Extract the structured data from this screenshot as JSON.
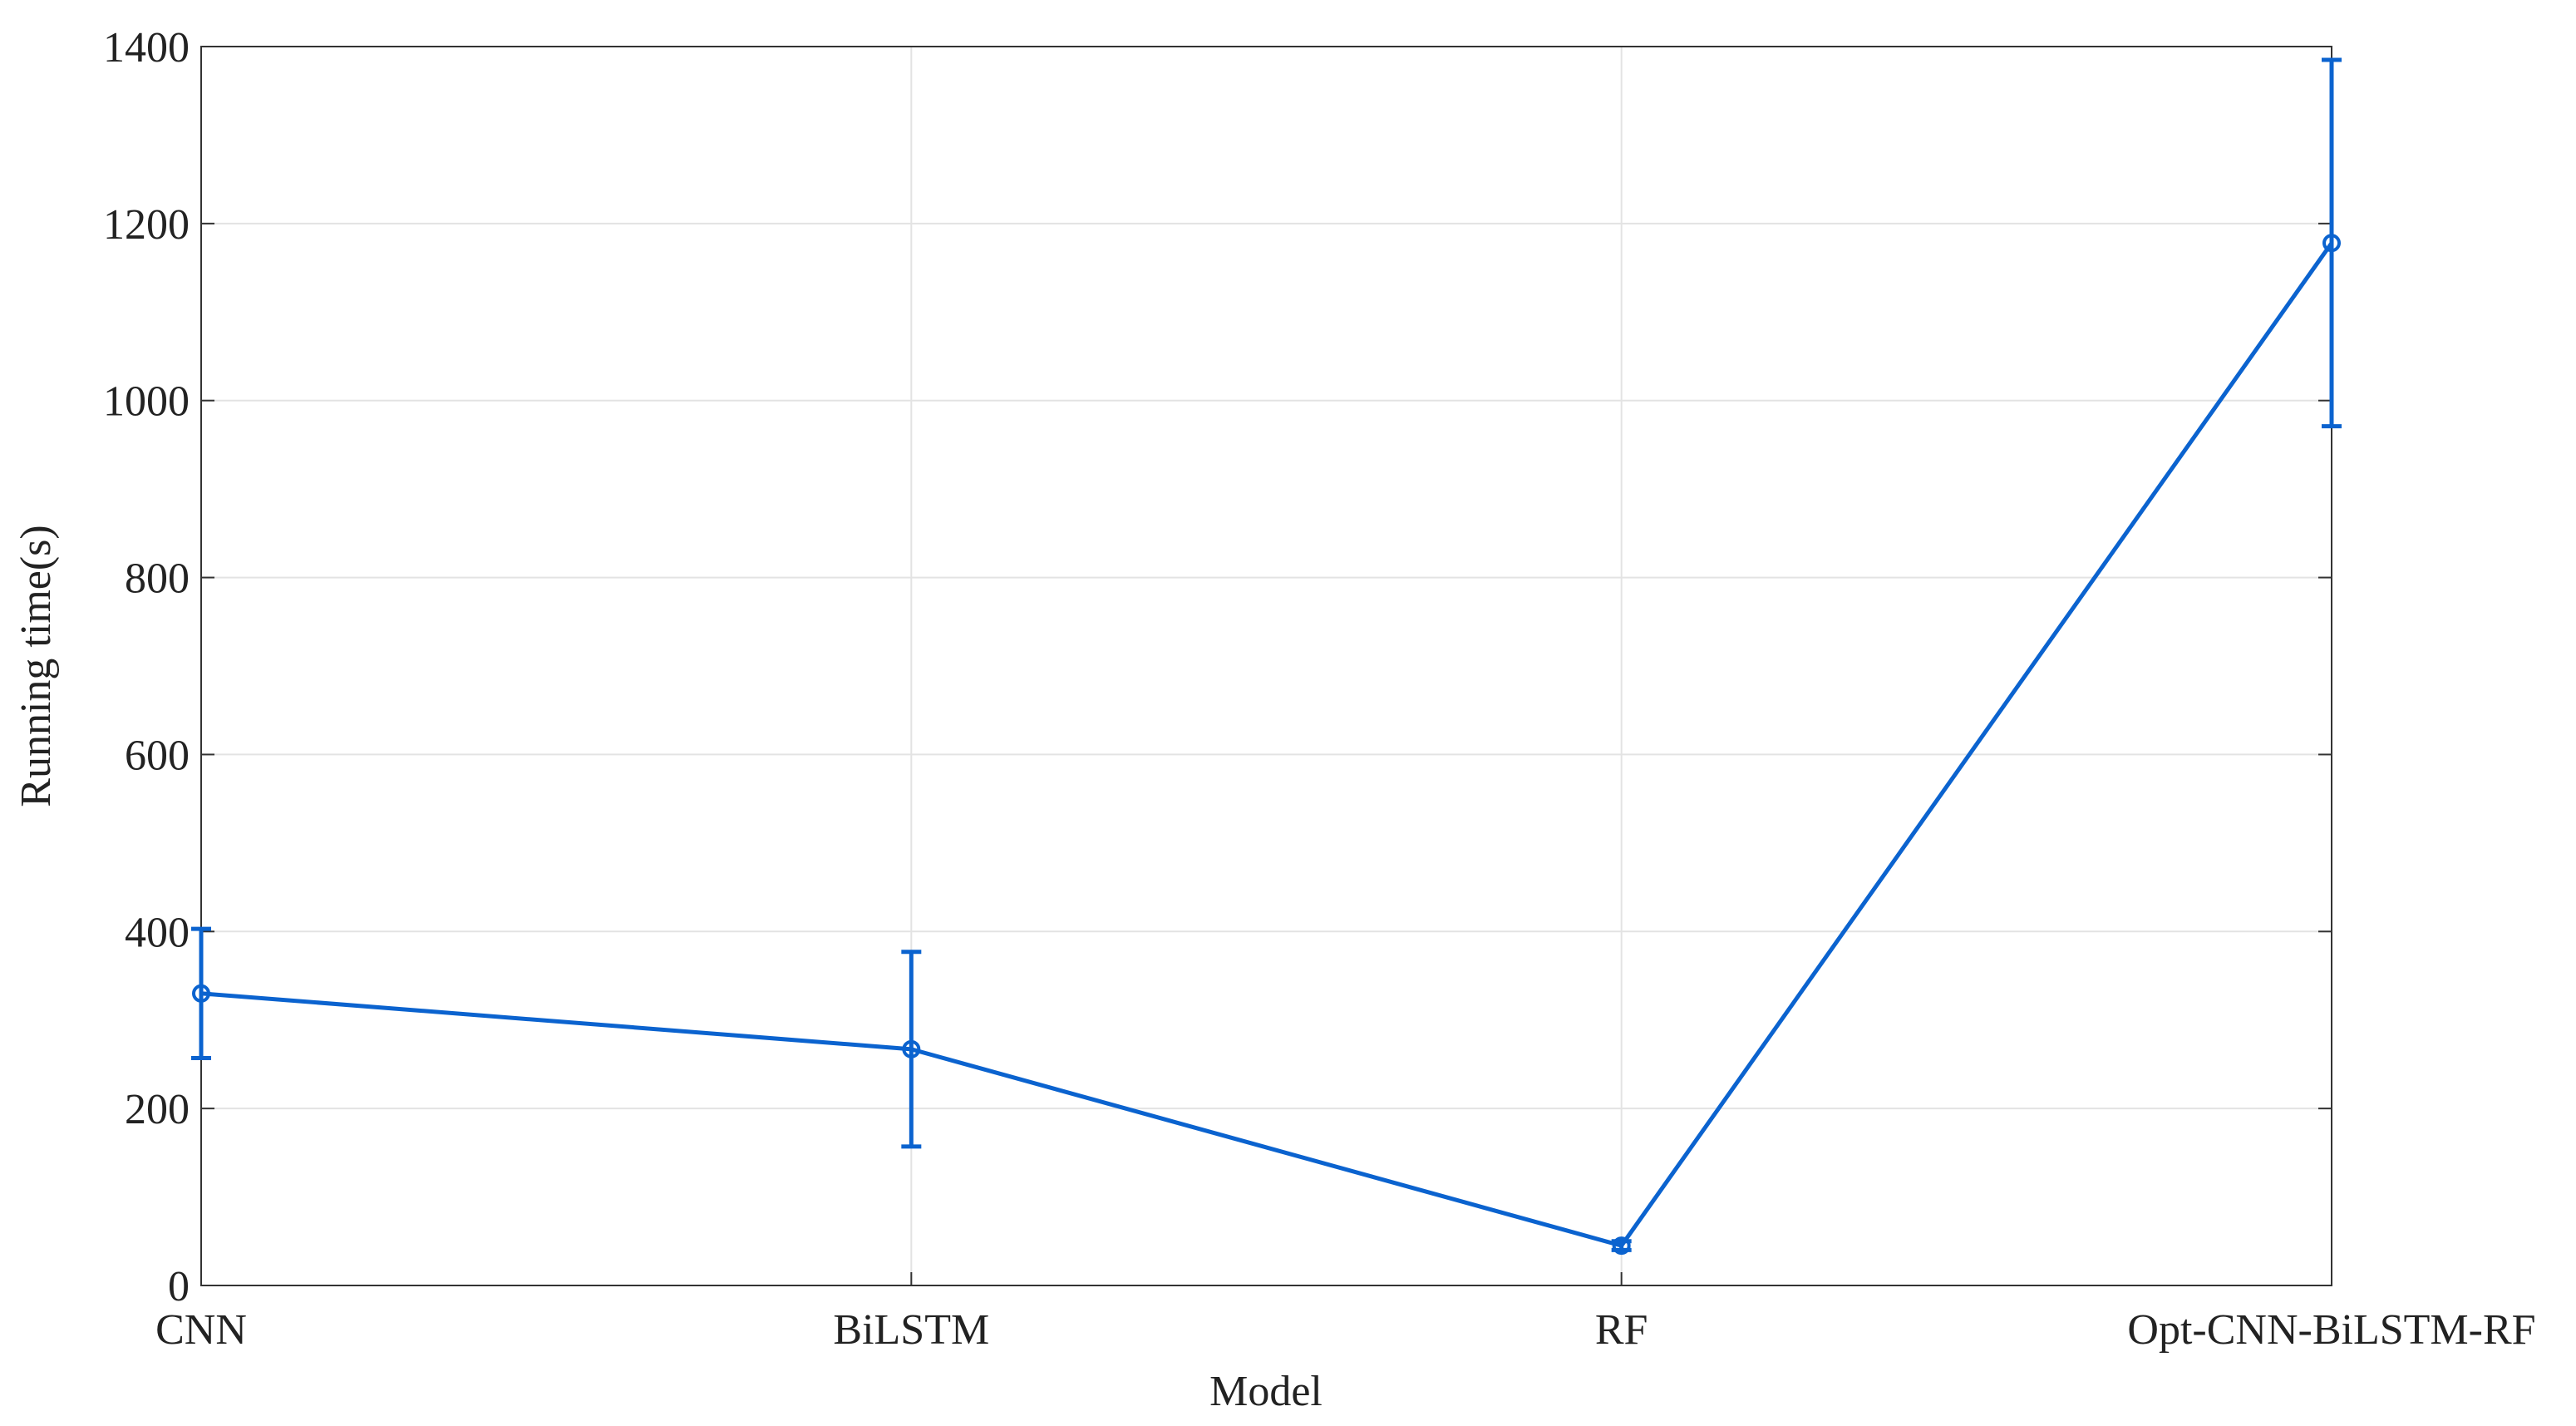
{
  "chart_data": {
    "type": "line",
    "x_label": "Model",
    "y_label": "Running time(s)",
    "categories": [
      "CNN",
      "BiLSTM",
      "RF",
      "Opt-CNN-BiLSTM-RF"
    ],
    "series": [
      {
        "color": "#0b63cf",
        "values": [
          330,
          267,
          45,
          1178
        ],
        "errors": [
          73,
          110,
          5,
          207
        ]
      }
    ],
    "ylim": [
      0,
      1400
    ],
    "yticks": [
      0,
      200,
      400,
      600,
      800,
      1000,
      1200,
      1400
    ],
    "grid": true
  }
}
